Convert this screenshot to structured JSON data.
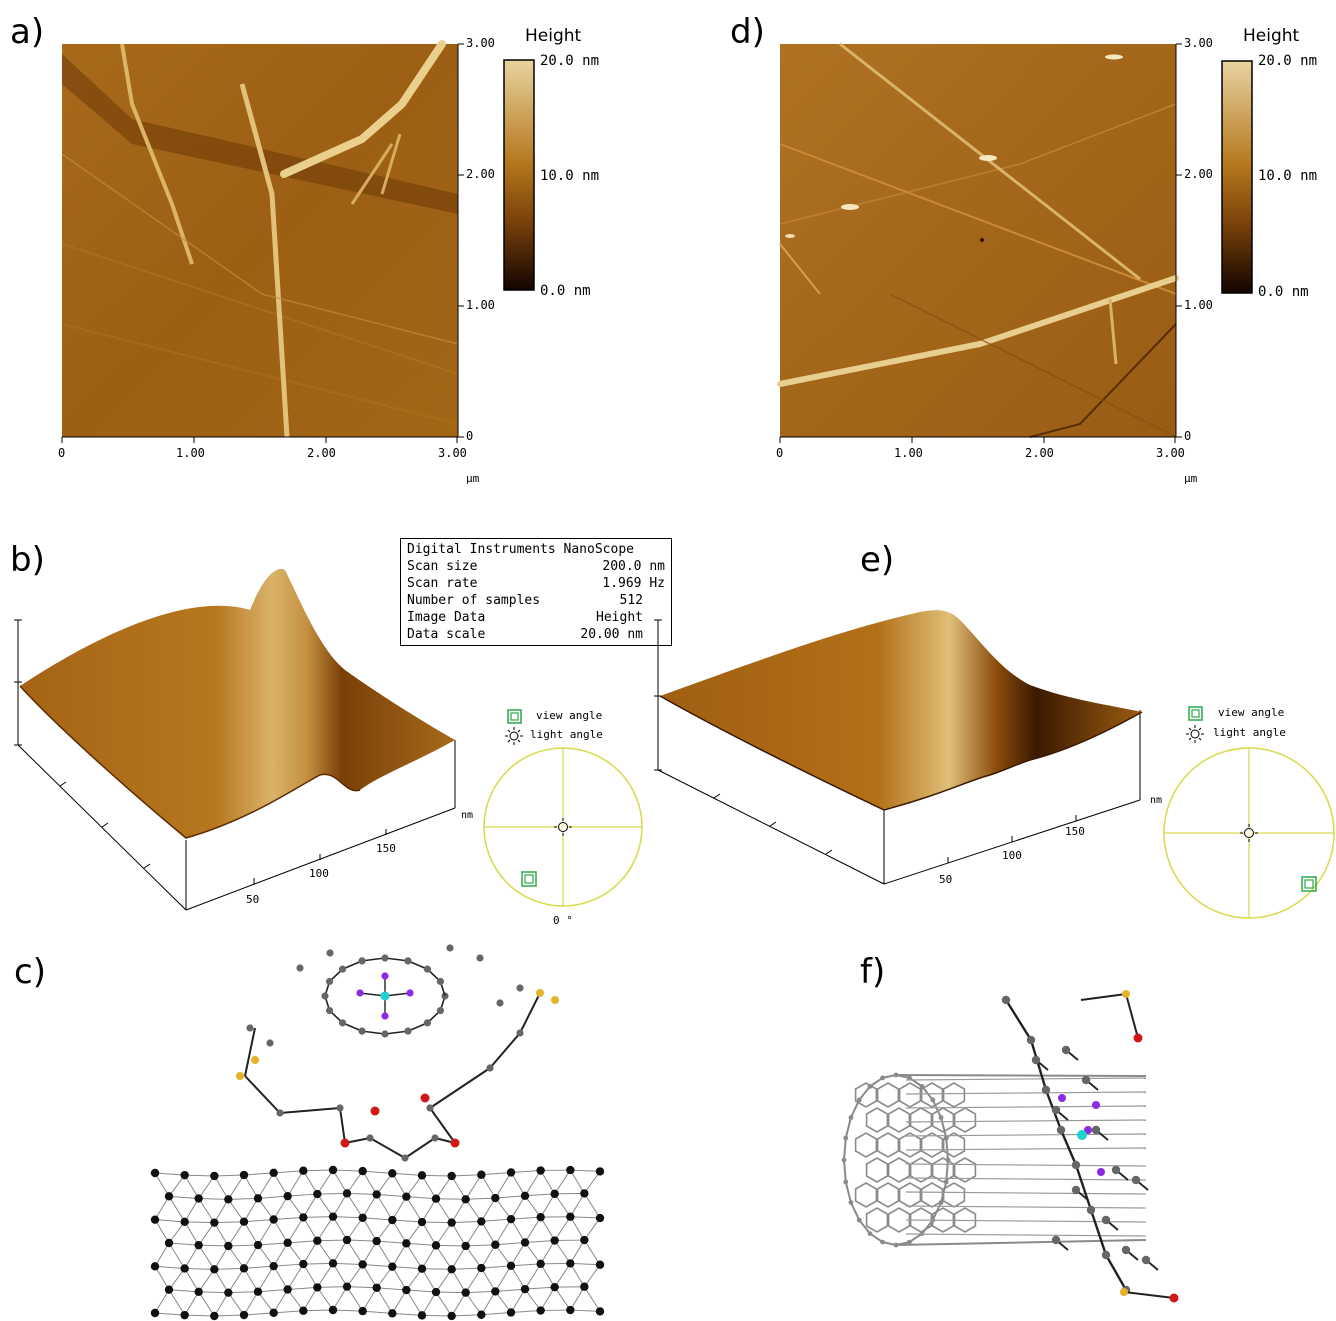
{
  "panels": {
    "a": {
      "label": "a)",
      "x_ticks": [
        "0",
        "1.00",
        "2.00",
        "3.00"
      ],
      "y_ticks": [
        "3.00",
        "2.00",
        "1.00",
        "0"
      ],
      "x_unit": "µm",
      "colorbar": {
        "title": "Height",
        "max": "20.0  nm",
        "mid": "10.0  nm",
        "min": "0.0  nm"
      }
    },
    "d": {
      "label": "d)",
      "x_ticks": [
        "0",
        "1.00",
        "2.00",
        "3.00"
      ],
      "y_ticks": [
        "3.00",
        "2.00",
        "1.00",
        "0"
      ],
      "x_unit": "µm",
      "colorbar": {
        "title": "Height",
        "max": "20.0  nm",
        "mid": "10.0  nm",
        "min": "0.0  nm"
      }
    },
    "b": {
      "label": "b)",
      "axis_unit": "nm",
      "axis_ticks": [
        "50",
        "100",
        "150"
      ],
      "view_angle": "view angle",
      "light_angle": "light angle",
      "angle_readout": "0 °"
    },
    "e": {
      "label": "e)",
      "axis_unit": "nm",
      "axis_ticks": [
        "50",
        "100",
        "150"
      ],
      "view_angle": "view angle",
      "light_angle": "light angle"
    },
    "c": {
      "label": "c)"
    },
    "f": {
      "label": "f)"
    }
  },
  "info_box": {
    "title": "Digital Instruments NanoScope",
    "rows": [
      {
        "key": "Scan size",
        "value": "200.0 nm"
      },
      {
        "key": "Scan rate",
        "value": "1.969 Hz"
      },
      {
        "key": "Number of samples",
        "value": "512"
      },
      {
        "key": "Image Data",
        "value": "Height"
      },
      {
        "key": "Data scale",
        "value": "20.00 nm"
      }
    ]
  },
  "colors": {
    "afm_dark": "#1a0a00",
    "afm_mid": "#9a5e12",
    "afm_light": "#e6cf98",
    "circle": "#d9d94a",
    "view_icon": "#2aa84a",
    "carbon": "#666666",
    "nitrogen": "#8a2be2",
    "metal": "#1ecfd4",
    "sulfur": "#e6b22a",
    "oxygen": "#d01818"
  }
}
